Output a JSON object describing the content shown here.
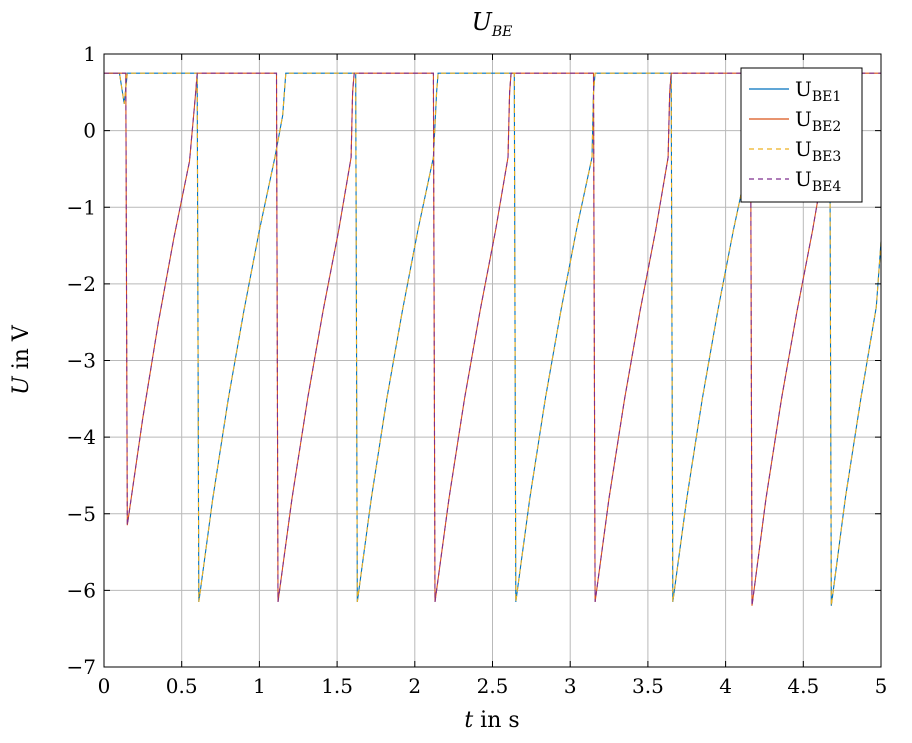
{
  "chart_data": {
    "type": "line",
    "title": {
      "main": "U",
      "sub": "BE"
    },
    "xlabel": {
      "symbol": "t",
      "rest": " in s"
    },
    "ylabel": {
      "symbol": "U",
      "rest": " in V"
    },
    "xlim": [
      0,
      5
    ],
    "ylim": [
      -7,
      1
    ],
    "xticks": [
      0,
      0.5,
      1,
      1.5,
      2,
      2.5,
      3,
      3.5,
      4,
      4.5,
      5
    ],
    "xtick_labels": [
      "0",
      "0.5",
      "1",
      "1.5",
      "2",
      "2.5",
      "3",
      "3.5",
      "4",
      "4.5",
      "5"
    ],
    "yticks": [
      1,
      0,
      -1,
      -2,
      -3,
      -4,
      -5,
      -6,
      -7
    ],
    "ytick_labels": [
      "1",
      "0",
      "−1",
      "−2",
      "−3",
      "−4",
      "−5",
      "−6",
      "−7"
    ],
    "grid": true,
    "legend_position": "top-right",
    "series": [
      {
        "name": {
          "main": "U",
          "sub": "BE1"
        },
        "color": "#0072BD",
        "dash": "solid",
        "points": [
          [
            0,
            0.75
          ],
          [
            0.1,
            0.75
          ],
          [
            0.13,
            0.35
          ],
          [
            0.15,
            0.75
          ],
          [
            0.6,
            0.75
          ],
          [
            0.61,
            -6.15
          ],
          [
            0.7,
            -4.8
          ],
          [
            0.8,
            -3.5
          ],
          [
            0.9,
            -2.35
          ],
          [
            1.0,
            -1.3
          ],
          [
            1.1,
            -0.35
          ],
          [
            1.15,
            0.2
          ],
          [
            1.17,
            0.75
          ],
          [
            1.62,
            0.75
          ],
          [
            1.63,
            -6.15
          ],
          [
            1.72,
            -4.8
          ],
          [
            1.82,
            -3.5
          ],
          [
            1.92,
            -2.35
          ],
          [
            2.02,
            -1.3
          ],
          [
            2.12,
            -0.35
          ],
          [
            2.14,
            0.5
          ],
          [
            2.15,
            0.75
          ],
          [
            2.64,
            0.75
          ],
          [
            2.65,
            -6.15
          ],
          [
            2.74,
            -4.8
          ],
          [
            2.84,
            -3.5
          ],
          [
            2.94,
            -2.35
          ],
          [
            3.04,
            -1.3
          ],
          [
            3.14,
            -0.35
          ],
          [
            3.15,
            0.5
          ],
          [
            3.16,
            0.75
          ],
          [
            3.65,
            0.75
          ],
          [
            3.66,
            -6.15
          ],
          [
            3.75,
            -4.8
          ],
          [
            3.85,
            -3.5
          ],
          [
            3.95,
            -2.35
          ],
          [
            4.05,
            -1.3
          ],
          [
            4.15,
            -0.35
          ],
          [
            4.17,
            0.5
          ],
          [
            4.18,
            0.75
          ],
          [
            4.67,
            0.75
          ],
          [
            4.68,
            -6.2
          ],
          [
            4.77,
            -4.8
          ],
          [
            4.87,
            -3.5
          ],
          [
            4.97,
            -2.3
          ],
          [
            5.0,
            -1.45
          ]
        ]
      },
      {
        "name": {
          "main": "U",
          "sub": "BE2"
        },
        "color": "#D95319",
        "dash": "solid",
        "points": [
          [
            0,
            0.75
          ],
          [
            0.14,
            0.75
          ],
          [
            0.15,
            -5.15
          ],
          [
            0.25,
            -3.75
          ],
          [
            0.35,
            -2.5
          ],
          [
            0.45,
            -1.4
          ],
          [
            0.55,
            -0.4
          ],
          [
            0.59,
            0.5
          ],
          [
            0.6,
            0.75
          ],
          [
            1.11,
            0.75
          ],
          [
            1.12,
            -6.15
          ],
          [
            1.21,
            -4.8
          ],
          [
            1.31,
            -3.5
          ],
          [
            1.41,
            -2.35
          ],
          [
            1.51,
            -1.3
          ],
          [
            1.59,
            -0.35
          ],
          [
            1.6,
            0.5
          ],
          [
            1.61,
            0.75
          ],
          [
            2.12,
            0.75
          ],
          [
            2.13,
            -6.15
          ],
          [
            2.22,
            -4.8
          ],
          [
            2.32,
            -3.5
          ],
          [
            2.42,
            -2.35
          ],
          [
            2.52,
            -1.3
          ],
          [
            2.6,
            -0.35
          ],
          [
            2.61,
            0.5
          ],
          [
            2.62,
            0.75
          ],
          [
            3.15,
            0.75
          ],
          [
            3.16,
            -6.15
          ],
          [
            3.25,
            -4.8
          ],
          [
            3.35,
            -3.5
          ],
          [
            3.45,
            -2.35
          ],
          [
            3.55,
            -1.3
          ],
          [
            3.63,
            -0.35
          ],
          [
            3.64,
            0.5
          ],
          [
            3.65,
            0.75
          ],
          [
            4.16,
            0.75
          ],
          [
            4.17,
            -6.2
          ],
          [
            4.26,
            -4.8
          ],
          [
            4.36,
            -3.5
          ],
          [
            4.46,
            -2.35
          ],
          [
            4.56,
            -1.3
          ],
          [
            4.64,
            -0.35
          ],
          [
            4.66,
            0.5
          ],
          [
            4.67,
            0.75
          ],
          [
            5.0,
            0.75
          ]
        ]
      },
      {
        "name": {
          "main": "U",
          "sub": "BE3"
        },
        "color": "#EDB120",
        "dash": "dashed",
        "points": [
          [
            0,
            0.75
          ],
          [
            0.1,
            0.75
          ],
          [
            0.13,
            0.35
          ],
          [
            0.15,
            0.75
          ],
          [
            0.6,
            0.75
          ],
          [
            0.61,
            -6.15
          ],
          [
            0.7,
            -4.8
          ],
          [
            0.8,
            -3.5
          ],
          [
            0.9,
            -2.35
          ],
          [
            1.0,
            -1.3
          ],
          [
            1.1,
            -0.35
          ],
          [
            1.15,
            0.2
          ],
          [
            1.17,
            0.75
          ],
          [
            1.62,
            0.75
          ],
          [
            1.63,
            -6.15
          ],
          [
            1.72,
            -4.8
          ],
          [
            1.82,
            -3.5
          ],
          [
            1.92,
            -2.35
          ],
          [
            2.02,
            -1.3
          ],
          [
            2.12,
            -0.35
          ],
          [
            2.14,
            0.5
          ],
          [
            2.15,
            0.75
          ],
          [
            2.64,
            0.75
          ],
          [
            2.65,
            -6.15
          ],
          [
            2.74,
            -4.8
          ],
          [
            2.84,
            -3.5
          ],
          [
            2.94,
            -2.35
          ],
          [
            3.04,
            -1.3
          ],
          [
            3.14,
            -0.35
          ],
          [
            3.15,
            0.5
          ],
          [
            3.16,
            0.75
          ],
          [
            3.65,
            0.75
          ],
          [
            3.66,
            -6.15
          ],
          [
            3.75,
            -4.8
          ],
          [
            3.85,
            -3.5
          ],
          [
            3.95,
            -2.35
          ],
          [
            4.05,
            -1.3
          ],
          [
            4.15,
            -0.35
          ],
          [
            4.17,
            0.5
          ],
          [
            4.18,
            0.75
          ],
          [
            4.67,
            0.75
          ],
          [
            4.68,
            -6.2
          ],
          [
            4.77,
            -4.8
          ],
          [
            4.87,
            -3.5
          ],
          [
            4.97,
            -2.3
          ],
          [
            5.0,
            -1.45
          ]
        ]
      },
      {
        "name": {
          "main": "U",
          "sub": "BE4"
        },
        "color": "#7E2F8E",
        "dash": "dashed",
        "points": [
          [
            0,
            0.75
          ],
          [
            0.14,
            0.75
          ],
          [
            0.15,
            -5.15
          ],
          [
            0.25,
            -3.75
          ],
          [
            0.35,
            -2.5
          ],
          [
            0.45,
            -1.4
          ],
          [
            0.55,
            -0.4
          ],
          [
            0.59,
            0.5
          ],
          [
            0.6,
            0.75
          ],
          [
            1.11,
            0.75
          ],
          [
            1.12,
            -6.15
          ],
          [
            1.21,
            -4.8
          ],
          [
            1.31,
            -3.5
          ],
          [
            1.41,
            -2.35
          ],
          [
            1.51,
            -1.3
          ],
          [
            1.59,
            -0.35
          ],
          [
            1.6,
            0.5
          ],
          [
            1.61,
            0.75
          ],
          [
            2.12,
            0.75
          ],
          [
            2.13,
            -6.15
          ],
          [
            2.22,
            -4.8
          ],
          [
            2.32,
            -3.5
          ],
          [
            2.42,
            -2.35
          ],
          [
            2.52,
            -1.3
          ],
          [
            2.6,
            -0.35
          ],
          [
            2.61,
            0.5
          ],
          [
            2.62,
            0.75
          ],
          [
            3.15,
            0.75
          ],
          [
            3.16,
            -6.15
          ],
          [
            3.25,
            -4.8
          ],
          [
            3.35,
            -3.5
          ],
          [
            3.45,
            -2.35
          ],
          [
            3.55,
            -1.3
          ],
          [
            3.63,
            -0.35
          ],
          [
            3.64,
            0.5
          ],
          [
            3.65,
            0.75
          ],
          [
            4.16,
            0.75
          ],
          [
            4.17,
            -6.2
          ],
          [
            4.26,
            -4.8
          ],
          [
            4.36,
            -3.5
          ],
          [
            4.46,
            -2.35
          ],
          [
            4.56,
            -1.3
          ],
          [
            4.64,
            -0.35
          ],
          [
            4.66,
            0.5
          ],
          [
            4.67,
            0.75
          ],
          [
            5.0,
            0.75
          ]
        ]
      }
    ]
  }
}
